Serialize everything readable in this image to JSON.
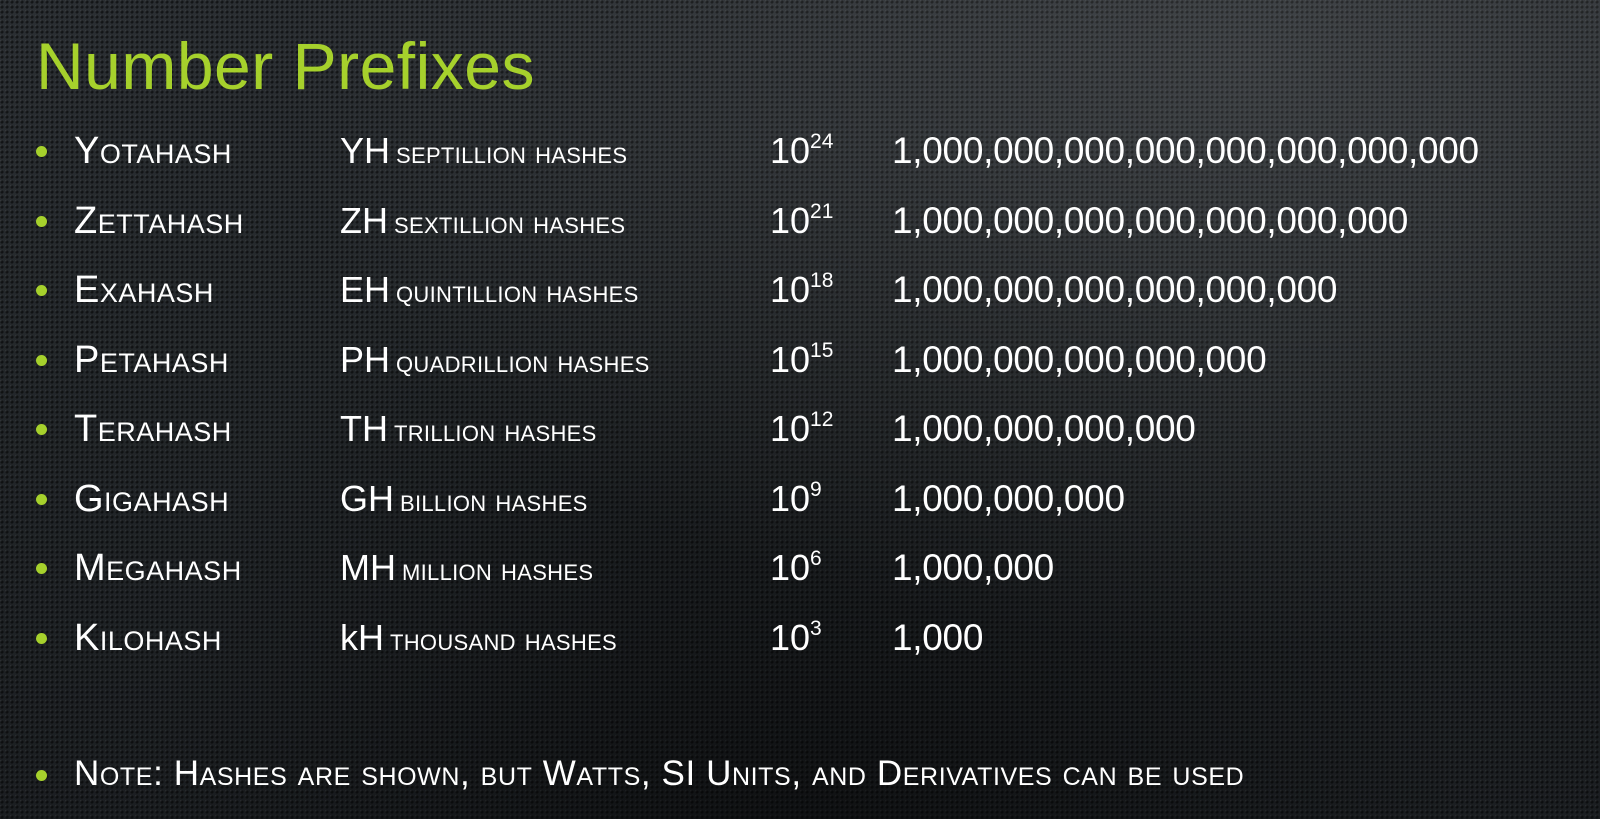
{
  "slide": {
    "title": "Number Prefixes",
    "accent_color": "#a6d12c",
    "rows": [
      {
        "prefix": "Yotahash",
        "symbol": "YH",
        "words": "septillion hashes",
        "base": "10",
        "exponent": "24",
        "value": "1,000,000,000,000,000,000,000,000"
      },
      {
        "prefix": "Zettahash",
        "symbol": "ZH",
        "words": "sextillion hashes",
        "base": "10",
        "exponent": "21",
        "value": "1,000,000,000,000,000,000,000"
      },
      {
        "prefix": "Exahash",
        "symbol": "EH",
        "words": "quintillion hashes",
        "base": "10",
        "exponent": "18",
        "value": "1,000,000,000,000,000,000"
      },
      {
        "prefix": "Petahash",
        "symbol": "PH",
        "words": "quadrillion hashes",
        "base": "10",
        "exponent": "15",
        "value": "1,000,000,000,000,000"
      },
      {
        "prefix": "Terahash",
        "symbol": "TH",
        "words": "trillion hashes",
        "base": "10",
        "exponent": "12",
        "value": "1,000,000,000,000"
      },
      {
        "prefix": "Gigahash",
        "symbol": "GH",
        "words": "billion hashes",
        "base": "10",
        "exponent": "9",
        "value": "1,000,000,000"
      },
      {
        "prefix": "Megahash",
        "symbol": "MH",
        "words": "million hashes",
        "base": "10",
        "exponent": "6",
        "value": "1,000,000"
      },
      {
        "prefix": "Kilohash",
        "symbol": "kH",
        "words": "thousand hashes",
        "base": "10",
        "exponent": "3",
        "value": "1,000"
      }
    ],
    "note": "Note: Hashes are shown, but Watts, SI Units, and Derivatives can be used"
  }
}
